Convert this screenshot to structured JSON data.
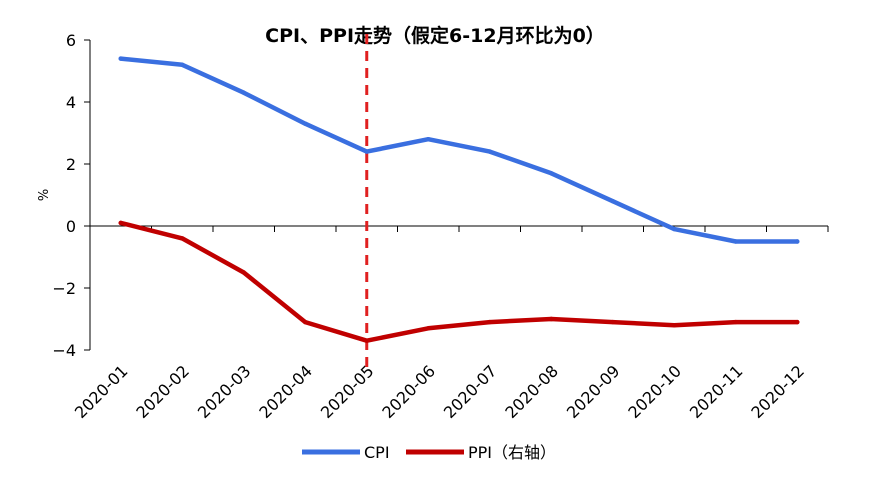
{
  "chart_data": {
    "type": "line",
    "title": "CPI、PPI走势（假定6-12月环比为0）",
    "ylabel": "%",
    "xlabel": "",
    "ylim": [
      -4,
      6
    ],
    "yticks": [
      6,
      4,
      2,
      0,
      -2,
      -4
    ],
    "ytick_labels": [
      "6",
      "4",
      "2",
      "0",
      "−2",
      "−4"
    ],
    "categories": [
      "2020-01",
      "2020-02",
      "2020-03",
      "2020-04",
      "2020-05",
      "2020-06",
      "2020-07",
      "2020-08",
      "2020-09",
      "2020-10",
      "2020-11",
      "2020-12"
    ],
    "series": [
      {
        "name": "CPI",
        "color": "#3a6fe0",
        "values": [
          5.4,
          5.2,
          4.3,
          3.3,
          2.4,
          2.8,
          2.4,
          1.7,
          0.8,
          -0.1,
          -0.5,
          -0.5
        ]
      },
      {
        "name": "PPI（右轴）",
        "color": "#c00000",
        "values": [
          0.1,
          -0.4,
          -1.5,
          -3.1,
          -3.7,
          -3.3,
          -3.1,
          -3.0,
          -3.1,
          -3.2,
          -3.1,
          -3.1
        ]
      }
    ],
    "marker_line": {
      "category": "2020-05",
      "color": "#e02020",
      "style": "dashed"
    },
    "legend": {
      "position": "bottom-center"
    },
    "grid": false
  }
}
